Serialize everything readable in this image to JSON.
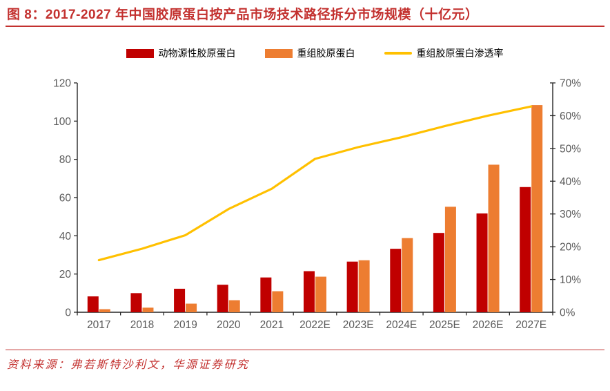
{
  "title": "图 8：2017-2027 年中国胶原蛋白按产品市场技术路径拆分市场规模（十亿元）",
  "source": "资料来源：弗若斯特沙利文，华源证券研究",
  "colors": {
    "title_red": "#C3312F",
    "divider_red": "#C3312F",
    "bar_red": "#C00000",
    "bar_orange": "#ED7D31",
    "line_yellow": "#FFC000",
    "axis_text_gray": "#595959",
    "axis_line": "#262626",
    "legend_text": "#000000"
  },
  "chart_data": {
    "type": "bar",
    "subtype": "grouped bars with secondary-axis line (combo)",
    "title": "2017-2027 年中国胶原蛋白按产品市场技术路径拆分市场规模（十亿元）",
    "categories": [
      "2017",
      "2018",
      "2019",
      "2020",
      "2021",
      "2022E",
      "2023E",
      "2024E",
      "2025E",
      "2026E",
      "2027E"
    ],
    "series": [
      {
        "name": "动物源性胶原蛋白",
        "type": "bar",
        "axis": "left",
        "color": "#C00000",
        "values": [
          8.3,
          10.0,
          12.3,
          14.4,
          18.2,
          21.5,
          26.5,
          33.2,
          41.5,
          51.7,
          65.5
        ]
      },
      {
        "name": "重组胶原蛋白",
        "type": "bar",
        "axis": "left",
        "color": "#ED7D31",
        "values": [
          1.6,
          2.4,
          4.5,
          6.3,
          11.0,
          18.6,
          27.2,
          38.8,
          55.2,
          77.2,
          108.4
        ]
      },
      {
        "name": "重组胶原蛋白渗透率",
        "type": "line",
        "axis": "right",
        "color": "#FFC000",
        "unit": "%",
        "values": [
          15.9,
          19.4,
          23.5,
          31.5,
          37.7,
          46.8,
          50.4,
          53.4,
          56.8,
          60.0,
          62.8
        ]
      }
    ],
    "left_axis": {
      "min": 0,
      "max": 120,
      "step": 20,
      "tick_labels": [
        "0",
        "20",
        "40",
        "60",
        "80",
        "100",
        "120"
      ]
    },
    "right_axis": {
      "min": 0,
      "max": 70,
      "step": 10,
      "tick_labels": [
        "0%",
        "10%",
        "20%",
        "30%",
        "40%",
        "50%",
        "60%",
        "70%"
      ]
    },
    "legend_position": "top",
    "grid": false
  }
}
